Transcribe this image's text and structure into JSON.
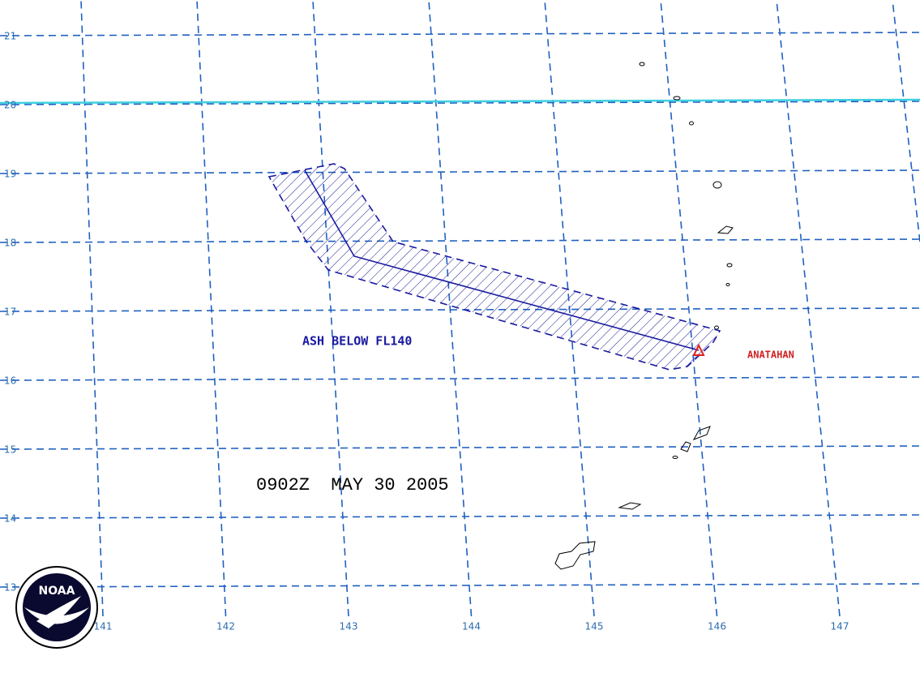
{
  "latitude_labels": [
    21,
    20,
    19,
    18,
    17,
    16,
    15,
    14,
    13
  ],
  "longitude_labels": [
    141,
    142,
    143,
    144,
    145,
    146,
    147
  ],
  "ash_label": "ASH BELOW FL140",
  "volcano_label": "ANATAHAN",
  "timestamp": "0902Z  MAY 30 2005",
  "logo": {
    "text": "NOAA"
  }
}
